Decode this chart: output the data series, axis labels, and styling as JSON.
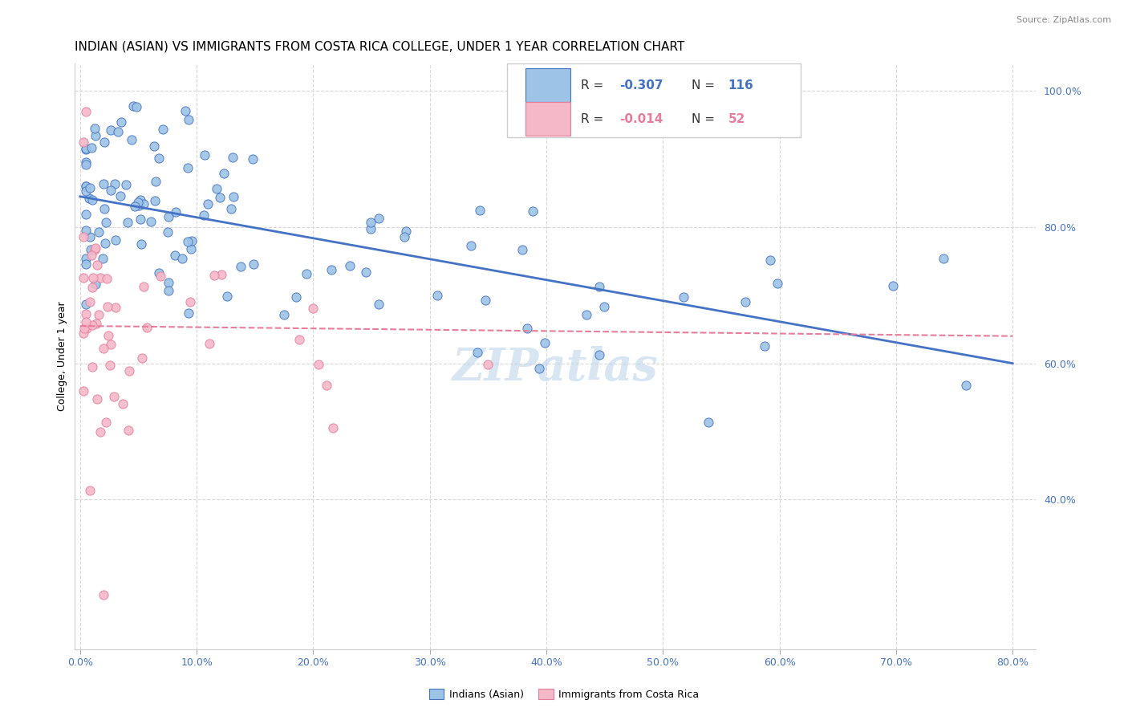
{
  "title": "INDIAN (ASIAN) VS IMMIGRANTS FROM COSTA RICA COLLEGE, UNDER 1 YEAR CORRELATION CHART",
  "source": "Source: ZipAtlas.com",
  "xlim": [
    -0.005,
    0.82
  ],
  "ylim": [
    0.18,
    1.04
  ],
  "ylabel": "College, Under 1 year",
  "watermark": "ZIPatlas",
  "blue_R": "-0.307",
  "blue_N": "116",
  "pink_R": "-0.014",
  "pink_N": "52",
  "blue_line_x": [
    0.0,
    0.8
  ],
  "blue_line_y": [
    0.845,
    0.6
  ],
  "pink_line_x": [
    0.0,
    0.8
  ],
  "pink_line_y": [
    0.655,
    0.64
  ],
  "blue_color": "#4472c4",
  "blue_fill": "#9dc3e6",
  "pink_color": "#e87d9b",
  "pink_fill": "#f4b8c8",
  "grid_color": "#d8d8d8",
  "right_ytick_color": "#4472c4",
  "x_tick_color": "#4472c4",
  "title_fontsize": 11,
  "axis_fontsize": 9,
  "tick_fontsize": 9,
  "source_fontsize": 8,
  "legend_fontsize": 11,
  "x_ticks": [
    0.0,
    0.1,
    0.2,
    0.3,
    0.4,
    0.5,
    0.6,
    0.7,
    0.8
  ],
  "x_tick_labels": [
    "0.0%",
    "10.0%",
    "20.0%",
    "30.0%",
    "40.0%",
    "50.0%",
    "60.0%",
    "70.0%",
    "80.0%"
  ],
  "y_ticks": [
    0.4,
    0.6,
    0.8,
    1.0
  ],
  "y_tick_labels": [
    "40.0%",
    "60.0%",
    "80.0%",
    "100.0%"
  ]
}
